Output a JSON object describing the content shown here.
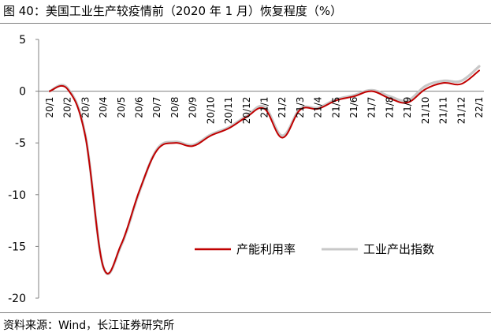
{
  "figure": {
    "title": "图 40：美国工业生产较疫情前（2020 年 1 月）恢复程度（%）",
    "source": "资料来源：Wind，长江证券研究所"
  },
  "chart_data": {
    "type": "line",
    "title": "图 40：美国工业生产较疫情前（2020 年 1 月）恢复程度（%）",
    "xlabel": "",
    "ylabel": "",
    "categories": [
      "20/1",
      "20/2",
      "20/3",
      "20/4",
      "20/5",
      "20/6",
      "20/7",
      "20/8",
      "20/9",
      "20/10",
      "20/11",
      "20/12",
      "21/1",
      "21/2",
      "21/3",
      "21/4",
      "21/5",
      "21/6",
      "21/7",
      "21/8",
      "21/9",
      "21/10",
      "21/11",
      "21/12",
      "22/1"
    ],
    "yticks": [
      5,
      0,
      -5,
      -10,
      -15,
      -20
    ],
    "ylim": [
      -20,
      5
    ],
    "grid": false,
    "legend_position": "bottom-right",
    "series": [
      {
        "name": "产能利用率",
        "color": "#c00000",
        "values": [
          0,
          0.2,
          -4.4,
          -17.0,
          -14.8,
          -9.7,
          -5.7,
          -5.0,
          -5.3,
          -4.3,
          -3.6,
          -2.5,
          -1.7,
          -4.5,
          -1.8,
          -1.7,
          -0.9,
          -0.5,
          0.0,
          -0.7,
          -1.1,
          0.2,
          0.8,
          0.7,
          2.0
        ]
      },
      {
        "name": "工业产出指数",
        "color": "#c8c8c8",
        "values": [
          0,
          0.3,
          -4.3,
          -17.0,
          -14.9,
          -9.8,
          -5.6,
          -4.9,
          -5.2,
          -4.2,
          -3.5,
          -2.4,
          -1.5,
          -4.3,
          -1.7,
          -1.6,
          -0.8,
          -0.4,
          0.1,
          -0.5,
          -0.9,
          0.5,
          1.0,
          1.0,
          2.4
        ]
      }
    ]
  }
}
